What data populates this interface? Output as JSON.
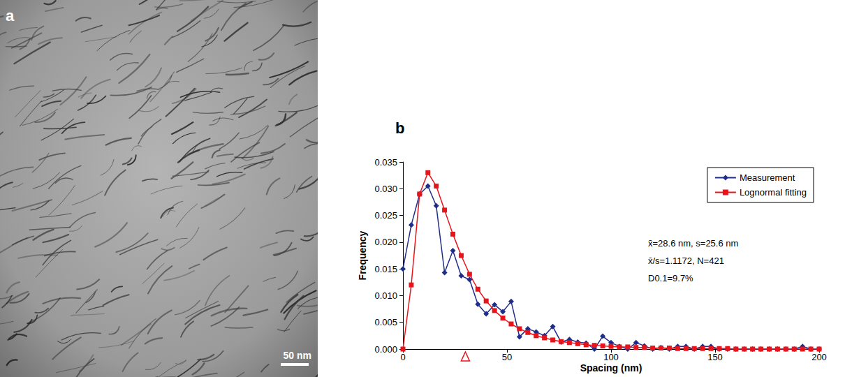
{
  "image": {
    "panel_label": "a",
    "scale_bar": "50 nm"
  },
  "chart_data": {
    "type": "line",
    "panel_label": "b",
    "x_label": "Spacing (nm)",
    "y_label": "Frequency",
    "x": [
      0,
      4,
      8,
      12,
      16,
      20,
      24,
      28,
      32,
      36,
      40,
      44,
      48,
      52,
      56,
      60,
      64,
      68,
      72,
      76,
      80,
      84,
      88,
      92,
      96,
      100,
      104,
      108,
      112,
      116,
      120,
      124,
      128,
      132,
      136,
      140,
      144,
      148,
      152,
      156,
      160,
      164,
      168,
      172,
      176,
      180,
      184,
      188,
      192,
      196,
      200
    ],
    "series": [
      {
        "name": "Measurement",
        "color": "#1f2d8a",
        "marker": "diamond",
        "line_style": "solid",
        "values": [
          0.015,
          0.0232,
          0.029,
          0.0305,
          0.0268,
          0.0143,
          0.0184,
          0.0137,
          0.013,
          0.0084,
          0.0066,
          0.0083,
          0.007,
          0.0089,
          0.0023,
          0.0038,
          0.0032,
          0.0025,
          0.0042,
          0.0013,
          0.0018,
          0.0013,
          0.0011,
          0,
          0.0024,
          0.0012,
          0.0005,
          0,
          0.0012,
          0.0006,
          0,
          0.0003,
          0,
          0.0005,
          0.0005,
          0,
          0.0005,
          0.0005,
          0,
          0,
          0,
          0,
          0,
          0,
          0,
          0,
          0,
          0,
          0.0005,
          0,
          0
        ]
      },
      {
        "name": "Lognormal fitting",
        "color": "#e8141c",
        "marker": "square",
        "line_style": "solid",
        "values": [
          0,
          0.012,
          0.029,
          0.033,
          0.0305,
          0.026,
          0.0215,
          0.0175,
          0.014,
          0.0112,
          0.009,
          0.0072,
          0.0058,
          0.0047,
          0.0038,
          0.0031,
          0.0025,
          0.0021,
          0.0017,
          0.0014,
          0.0012,
          0.001,
          0.0008,
          0.0007,
          0.0006,
          0.0005,
          0.0004,
          0.0004,
          0.0003,
          0.0003,
          0.0002,
          0.0002,
          0.0002,
          0.0001,
          0.0001,
          0.0001,
          0.0001,
          0.0001,
          0.0001,
          0.0001,
          0,
          0,
          0,
          0,
          0,
          0,
          0,
          0,
          0,
          0,
          0
        ]
      }
    ],
    "xlim": [
      0,
      200
    ],
    "xticks": [
      0,
      50,
      100,
      150,
      200
    ],
    "ylim": [
      0,
      0.035
    ],
    "yticks": [
      {
        "value": 0,
        "label": "0.000"
      },
      {
        "value": 0.005,
        "label": "0.005"
      },
      {
        "value": 0.01,
        "label": "0.010"
      },
      {
        "value": 0.015,
        "label": "0.015"
      },
      {
        "value": 0.02,
        "label": "0.020"
      },
      {
        "value": 0.025,
        "label": "0.025"
      },
      {
        "value": 0.03,
        "label": "0.030"
      },
      {
        "value": 0.035,
        "label": "0.035"
      }
    ],
    "grid": false,
    "legend": "upper right",
    "annotations": [
      "x̄=28.6 nm, s=25.6 nm",
      "x̄/s=1.1172, N=421",
      "D0.1=9.7%"
    ],
    "marker_x": 30
  }
}
